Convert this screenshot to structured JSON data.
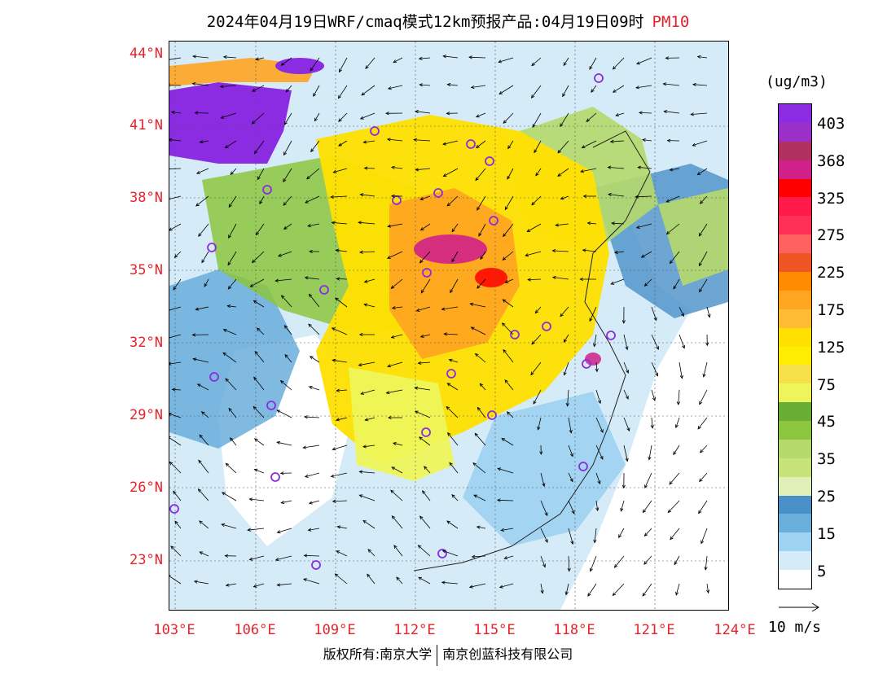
{
  "title": {
    "main": "2024年04月19日WRF/cmaq模式12km预报产品:04月19日09时",
    "pollutant": "PM10"
  },
  "axes": {
    "lat_labels": [
      "44°N",
      "41°N",
      "38°N",
      "35°N",
      "32°N",
      "29°N",
      "26°N",
      "23°N"
    ],
    "lon_labels": [
      "103°E",
      "106°E",
      "109°E",
      "112°E",
      "115°E",
      "118°E",
      "121°E",
      "124°E"
    ]
  },
  "legend": {
    "unit": "(ug/m3)",
    "levels": [
      "403",
      "368",
      "325",
      "275",
      "225",
      "175",
      "125",
      "75",
      "45",
      "35",
      "25",
      "15",
      "5"
    ],
    "colors": [
      "#8b2be2",
      "#9b30c8",
      "#b03060",
      "#d0208a",
      "#ff0000",
      "#ff1a4a",
      "#ff3055",
      "#ff6060",
      "#ee5522",
      "#ff8c00",
      "#ffa520",
      "#ffbb33",
      "#ffe000",
      "#ffee00",
      "#f5e04a",
      "#eef55a",
      "#6aad35",
      "#8cc63e",
      "#b5d96a",
      "#c8e27a",
      "#e0efb8",
      "#4a90c8",
      "#6aaedc",
      "#9dd2f0",
      "#d5ecf8",
      "#ffffff"
    ]
  },
  "vector_reference": {
    "label": "10 m/s"
  },
  "footer": {
    "copyright_left": "版权所有:南京大学",
    "copyright_right": "南京创蓝科技有限公司"
  }
}
